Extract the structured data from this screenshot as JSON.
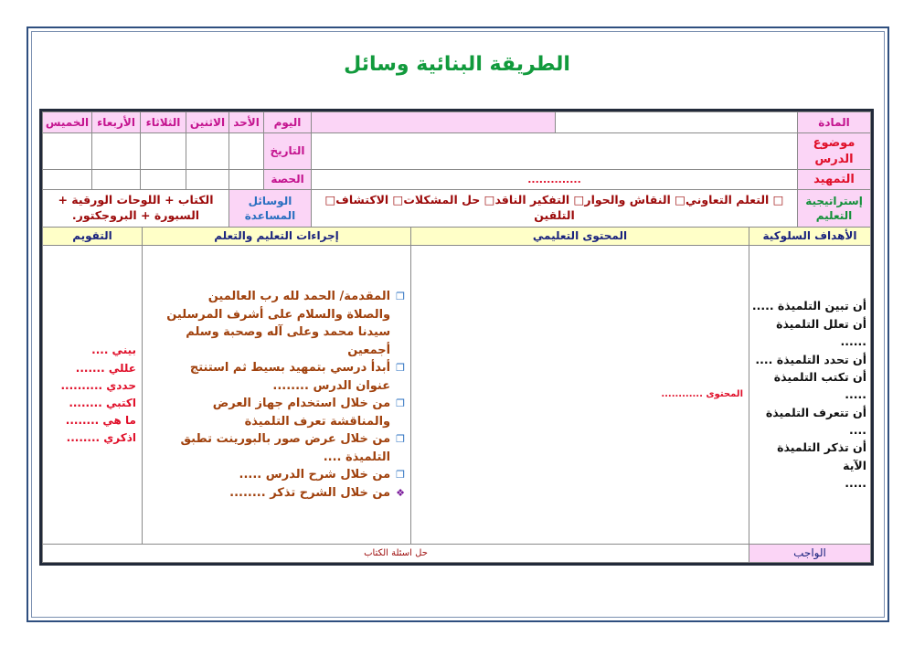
{
  "title": "الطريقة البنائية وسائل",
  "header": {
    "subject_label": "المادة",
    "topic_label": "موضوع الدرس",
    "intro_label": "التمهيد",
    "intro_value": "..............",
    "strategy_label": "إستراتيجية التعليم",
    "strategies": "□ التعلم التعاوني□ النقاش والحوار□ التفكير الناقد□ حل المشكلات□ الاكتشاف□ التلقين",
    "day_label": "اليوم",
    "date_label": "التاريخ",
    "period_label": "الحصة",
    "days": [
      "الأحد",
      "الاثنين",
      "الثلاثاء",
      "الأربعاء",
      "الخميس"
    ],
    "aids_label": "الوسائل المساعدة",
    "aids_value": "الكتاب + اللوحات الورقية + السبورة + البروجكتور."
  },
  "columns": {
    "objectives": "الأهداف السلوكية",
    "content": "المحتوى التعليمي",
    "procedures": "إجراءات التعليم والتعلم",
    "evaluation": "التقويم"
  },
  "objectives": [
    "أن تبين التلميذة .....",
    "أن تعلل التلميذة ......",
    "أن تحدد التلميذة ....",
    "أن تكتب التلميذة .....",
    "أن تتعرف التلميذة ....",
    "أن تذكر التلميذة الآية",
    "....."
  ],
  "content_text": "المحتوى ............",
  "procedures": [
    {
      "icon": "square-bullet",
      "text": "المقدمة/ الحمد لله رب العالمين والصلاة والسلام على أشرف المرسلين سيدنا محمد وعلى آله وصحبة وسلم أجمعين"
    },
    {
      "icon": "square-bullet",
      "text": "أبدأ درسي بتمهيد بسيط ثم استنتج عنوان الدرس ........"
    },
    {
      "icon": "square-bullet",
      "text": "من خلال استخدام جهاز العرض والمناقشة تعرف التلميذة"
    },
    {
      "icon": "square-bullet",
      "text": "من خلال عرض صور بالبورينت تطبق التلميذة ...."
    },
    {
      "icon": "square-bullet",
      "text": "من خلال شرح الدرس ....."
    },
    {
      "icon": "diamond-bullet",
      "text": "من خلال الشرح تذكر ........"
    }
  ],
  "evaluation": [
    "بيني ....",
    "عللي .......",
    "حددي ..........",
    "اكتبي ........",
    "ما هي ........",
    "اذكري ........"
  ],
  "homework_label": "الواجب",
  "homework_value": "حل اسئلة الكتاب"
}
